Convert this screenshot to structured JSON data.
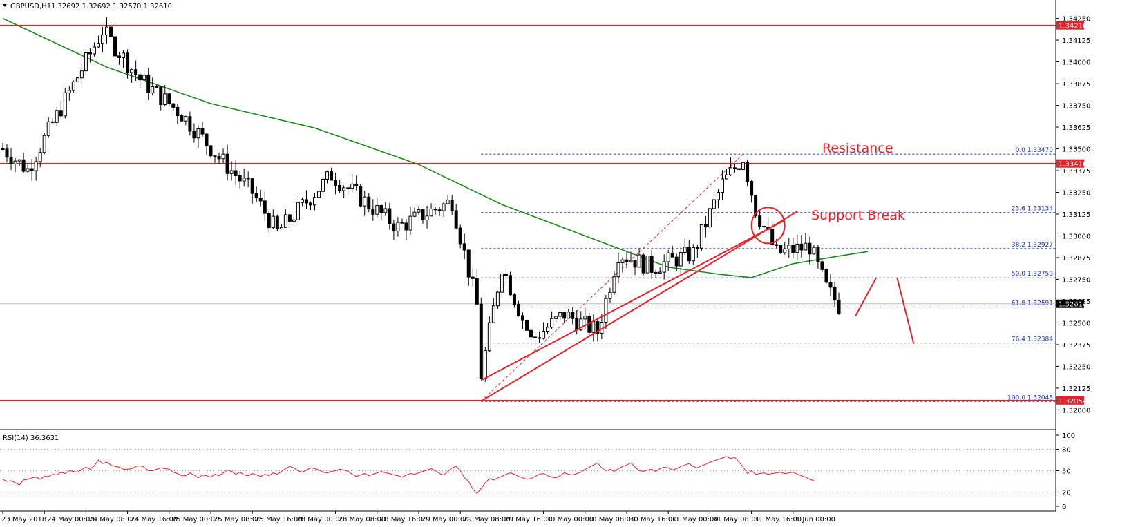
{
  "header": {
    "symbol": "GBPUSD,H1",
    "ohlc": "1.32692 1.32692 1.32570 1.32610"
  },
  "rsi_panel": {
    "label": "RSI(14) 36.3631"
  },
  "annotations": {
    "resistance": "Resistance",
    "support_break": "Support Break"
  },
  "colors": {
    "bull": "#ffffff",
    "bear": "#000000",
    "ma": "#1e8a1e",
    "red_line": "#e8202a",
    "fib": "#1b2fbf",
    "rsi": "#e8202a",
    "grid_dots": "#9a9a9a"
  },
  "chart_data": {
    "type": "candlestick",
    "price_axis": {
      "range": [
        1.3195,
        1.343
      ],
      "ticks": [
        "1.34250",
        "1.34125",
        "1.34000",
        "1.33875",
        "1.33750",
        "1.33625",
        "1.33500",
        "1.33375",
        "1.33250",
        "1.33125",
        "1.33000",
        "1.32875",
        "1.32750",
        "1.32625",
        "1.32500",
        "1.32375",
        "1.32250",
        "1.32125",
        "1.32000"
      ]
    },
    "time_axis": {
      "ticks": [
        "23 May 2018",
        "24 May 00:00",
        "24 May 08:00",
        "24 May 16:00",
        "25 May 00:00",
        "25 May 08:00",
        "25 May 16:00",
        "28 May 00:00",
        "28 May 08:00",
        "28 May 16:00",
        "29 May 00:00",
        "29 May 08:00",
        "29 May 16:00",
        "30 May 00:00",
        "30 May 08:00",
        "30 May 16:00",
        "31 May 00:00",
        "31 May 08:00",
        "31 May 16:00",
        "1 Jun 00:00"
      ],
      "tick_slots": [
        0,
        10,
        20,
        30,
        40,
        50,
        60,
        70,
        80,
        90,
        100,
        110,
        120,
        130,
        140,
        150,
        160,
        170,
        180,
        190
      ]
    },
    "horizontal_levels": [
      {
        "value": "1.34210",
        "price": 1.3421
      },
      {
        "value": "1.33416",
        "price": 1.33416
      },
      {
        "value": "1.32054",
        "price": 1.32054
      }
    ],
    "current_price": {
      "value": "1.32610",
      "price": 1.3261
    },
    "fibonacci": {
      "high": 1.3347,
      "low": 1.32048,
      "levels": [
        {
          "label": "0.0 1.33470",
          "price": 1.3347
        },
        {
          "label": "23.6 1.33134",
          "price": 1.33134
        },
        {
          "label": "38.2 1.32927",
          "price": 1.32927
        },
        {
          "label": "50.0 1.32759",
          "price": 1.32759
        },
        {
          "label": "61.8 1.32591",
          "price": 1.32591
        },
        {
          "label": "76.4 1.32384",
          "price": 1.32384
        },
        {
          "label": "100.0 1.32048",
          "price": 1.32048
        }
      ]
    },
    "key_points": [
      {
        "slot": 0,
        "price": 1.335
      },
      {
        "slot": 6,
        "price": 1.3338
      },
      {
        "slot": 24,
        "price": 1.3418
      },
      {
        "slot": 33,
        "price": 1.339
      },
      {
        "slot": 43,
        "price": 1.337
      },
      {
        "slot": 52,
        "price": 1.3345
      },
      {
        "slot": 60,
        "price": 1.3325
      },
      {
        "slot": 66,
        "price": 1.3302
      },
      {
        "slot": 79,
        "price": 1.3335
      },
      {
        "slot": 88,
        "price": 1.3318
      },
      {
        "slot": 95,
        "price": 1.3305
      },
      {
        "slot": 108,
        "price": 1.332
      },
      {
        "slot": 114,
        "price": 1.326
      },
      {
        "slot": 115,
        "price": 1.322
      },
      {
        "slot": 120,
        "price": 1.3283
      },
      {
        "slot": 127,
        "price": 1.324
      },
      {
        "slot": 135,
        "price": 1.3255
      },
      {
        "slot": 143,
        "price": 1.3245
      },
      {
        "slot": 148,
        "price": 1.329
      },
      {
        "slot": 156,
        "price": 1.3282
      },
      {
        "slot": 166,
        "price": 1.329
      },
      {
        "slot": 173,
        "price": 1.333
      },
      {
        "slot": 178,
        "price": 1.3345
      },
      {
        "slot": 181,
        "price": 1.3315
      },
      {
        "slot": 186,
        "price": 1.329
      },
      {
        "slot": 194,
        "price": 1.3294
      },
      {
        "slot": 198,
        "price": 1.327
      },
      {
        "slot": 201,
        "price": 1.326
      }
    ],
    "moving_average": [
      {
        "slot": 0,
        "price": 1.3425
      },
      {
        "slot": 25,
        "price": 1.3397
      },
      {
        "slot": 50,
        "price": 1.3376
      },
      {
        "slot": 75,
        "price": 1.3362
      },
      {
        "slot": 100,
        "price": 1.3341
      },
      {
        "slot": 120,
        "price": 1.3318
      },
      {
        "slot": 140,
        "price": 1.33
      },
      {
        "slot": 160,
        "price": 1.3282
      },
      {
        "slot": 172,
        "price": 1.3278
      },
      {
        "slot": 180,
        "price": 1.3276
      },
      {
        "slot": 190,
        "price": 1.3284
      },
      {
        "slot": 200,
        "price": 1.3288
      },
      {
        "slot": 208,
        "price": 1.3291
      }
    ],
    "trendlines": [
      {
        "from": {
          "slot": 115,
          "price": 1.3205
        },
        "to": {
          "slot": 191,
          "price": 1.3314
        }
      },
      {
        "from": {
          "slot": 115,
          "price": 1.3217
        },
        "to": {
          "slot": 188,
          "price": 1.3309
        }
      }
    ],
    "fib_diagonal": {
      "from": {
        "slot": 115,
        "price": 1.3205
      },
      "to": {
        "slot": 178,
        "price": 1.3347
      }
    },
    "projection": [
      {
        "from": {
          "slot": 205,
          "price": 1.3254
        },
        "to": {
          "slot": 210,
          "price": 1.3276
        }
      },
      {
        "from": {
          "slot": 215,
          "price": 1.3276
        },
        "to": {
          "slot": 219,
          "price": 1.3238
        }
      }
    ],
    "rsi": {
      "range": [
        0,
        100
      ],
      "ticks": [
        "100",
        "80",
        "50",
        "20",
        "0"
      ],
      "values": [
        38,
        35,
        36,
        33,
        30,
        37,
        38,
        40,
        41,
        38,
        42,
        42,
        45,
        44,
        48,
        46,
        50,
        49,
        48,
        52,
        55,
        52,
        57,
        65,
        60,
        62,
        58,
        56,
        55,
        52,
        52,
        53,
        56,
        57,
        55,
        50,
        50,
        52,
        54,
        53,
        52,
        48,
        46,
        43,
        43,
        47,
        44,
        40,
        44,
        43,
        41,
        45,
        43,
        47,
        51,
        49,
        45,
        48,
        44,
        43,
        46,
        44,
        42,
        45,
        43,
        47,
        45,
        49,
        53,
        56,
        54,
        50,
        48,
        51,
        54,
        53,
        51,
        48,
        47,
        49,
        50,
        52,
        51,
        49,
        45,
        42,
        44,
        46,
        43,
        45,
        47,
        49,
        47,
        46,
        44,
        43,
        41,
        44,
        46,
        45,
        47,
        49,
        51,
        53,
        50,
        46,
        44,
        49,
        54,
        56,
        50,
        40,
        35,
        24,
        18,
        25,
        33,
        39,
        37,
        40,
        42,
        45,
        47,
        45,
        42,
        40,
        38,
        39,
        42,
        45,
        46,
        43,
        41,
        40,
        43,
        47,
        45,
        44,
        46,
        48,
        52,
        55,
        58,
        61,
        54,
        50,
        52,
        49,
        53,
        56,
        58,
        61,
        55,
        50,
        49,
        51,
        52,
        49,
        53,
        55,
        54,
        51,
        53,
        56,
        58,
        60,
        56,
        54,
        57,
        59,
        62,
        64,
        66,
        68,
        70,
        67,
        69,
        62,
        55,
        46,
        50,
        45,
        46,
        47,
        45,
        46,
        47,
        48,
        46,
        47,
        48,
        45,
        43,
        41,
        38,
        36
      ]
    }
  }
}
